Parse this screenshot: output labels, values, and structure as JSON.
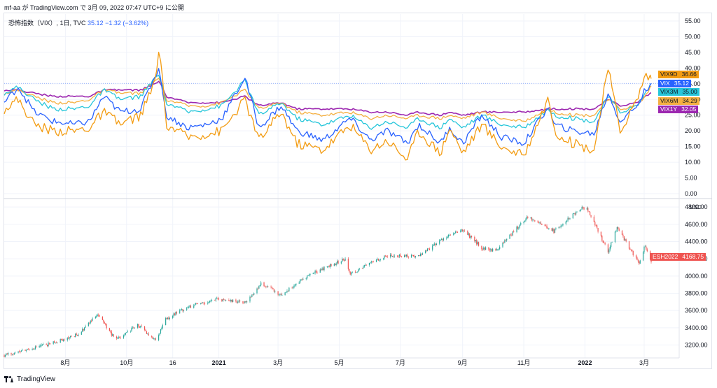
{
  "header": {
    "author": "mf-aa",
    "text": "mf-aa が TradingView.com で 3月 09, 2022 07:47 UTC+9 に公開"
  },
  "legend": {
    "symbol": "恐怖指数（VIX）, 1日, TVC",
    "value": "35.12",
    "change": "−1.32 (−3.62%)"
  },
  "footer": {
    "brand": "TradingView"
  },
  "colors": {
    "VIX9D": "#f39c12",
    "VIX": "#2962ff",
    "VIX3M": "#26c6da",
    "VIX6M": "#f5b041",
    "VIX1Y": "#9c27b0",
    "ESH2022": "#ef5350",
    "up": "#26a69a",
    "down": "#ef5350",
    "grid": "#f0f3fa"
  },
  "chart_data": [
    {
      "type": "line",
      "title": "恐怖指数（VIX）, 1日, TVC",
      "ylim": [
        0,
        55
      ],
      "y_ticks": [
        "55.00",
        "50.00",
        "45.00",
        "40.00",
        "35.00",
        "30.00",
        "25.00",
        "20.00",
        "15.00",
        "10.00",
        "5.00",
        "0.00"
      ],
      "x_ticks": [
        "8月",
        "10月",
        "16",
        "2021",
        "3月",
        "5月",
        "7月",
        "9月",
        "11月",
        "2022",
        "3月"
      ],
      "x_tick_dates": [
        "2020-08-01",
        "2020-10-01",
        "2020-11-16",
        "2021-01-01",
        "2021-03-01",
        "2021-05-01",
        "2021-07-01",
        "2021-09-01",
        "2021-11-01",
        "2022-01-01",
        "2022-03-01"
      ],
      "x_range": [
        "2020-06-01",
        "2022-03-08"
      ],
      "series": [
        {
          "name": "VIX9D",
          "last": "36.66",
          "anchors": [
            [
              "2020-06-01",
              27
            ],
            [
              "2020-06-15",
              30
            ],
            [
              "2020-07-01",
              22
            ],
            [
              "2020-07-20",
              20
            ],
            [
              "2020-08-10",
              20
            ],
            [
              "2020-08-25",
              21
            ],
            [
              "2020-09-08",
              26
            ],
            [
              "2020-09-25",
              22
            ],
            [
              "2020-10-15",
              25
            ],
            [
              "2020-10-30",
              36
            ],
            [
              "2020-11-03",
              48
            ],
            [
              "2020-11-09",
              22
            ],
            [
              "2020-12-01",
              18
            ],
            [
              "2020-12-20",
              19
            ],
            [
              "2021-01-04",
              20
            ],
            [
              "2021-01-27",
              30
            ],
            [
              "2021-02-10",
              17
            ],
            [
              "2021-03-04",
              26
            ],
            [
              "2021-03-20",
              16
            ],
            [
              "2021-04-15",
              14
            ],
            [
              "2021-05-12",
              22
            ],
            [
              "2021-06-01",
              14
            ],
            [
              "2021-06-18",
              17
            ],
            [
              "2021-07-08",
              11
            ],
            [
              "2021-07-19",
              20
            ],
            [
              "2021-08-10",
              13
            ],
            [
              "2021-08-19",
              21
            ],
            [
              "2021-09-01",
              13
            ],
            [
              "2021-09-20",
              22
            ],
            [
              "2021-10-10",
              15
            ],
            [
              "2021-11-01",
              12
            ],
            [
              "2021-11-26",
              31
            ],
            [
              "2021-12-01",
              20
            ],
            [
              "2021-12-20",
              16
            ],
            [
              "2022-01-10",
              14
            ],
            [
              "2022-01-24",
              40
            ],
            [
              "2022-02-05",
              20
            ],
            [
              "2022-02-22",
              30
            ],
            [
              "2022-03-02",
              38
            ],
            [
              "2022-03-08",
              36.66
            ]
          ]
        },
        {
          "name": "VIX",
          "last": "35.12",
          "anchors": [
            [
              "2020-06-01",
              29
            ],
            [
              "2020-06-15",
              34
            ],
            [
              "2020-07-01",
              26
            ],
            [
              "2020-07-20",
              23
            ],
            [
              "2020-08-10",
              22
            ],
            [
              "2020-08-25",
              23
            ],
            [
              "2020-09-08",
              31
            ],
            [
              "2020-09-25",
              26
            ],
            [
              "2020-10-15",
              27
            ],
            [
              "2020-10-30",
              38
            ],
            [
              "2020-11-03",
              40
            ],
            [
              "2020-11-09",
              25
            ],
            [
              "2020-12-01",
              21
            ],
            [
              "2020-12-20",
              22
            ],
            [
              "2021-01-04",
              24
            ],
            [
              "2021-01-27",
              37
            ],
            [
              "2021-02-10",
              21
            ],
            [
              "2021-03-04",
              28
            ],
            [
              "2021-03-20",
              20
            ],
            [
              "2021-04-15",
              17
            ],
            [
              "2021-05-12",
              24
            ],
            [
              "2021-06-01",
              17
            ],
            [
              "2021-06-18",
              20
            ],
            [
              "2021-07-08",
              16
            ],
            [
              "2021-07-19",
              22
            ],
            [
              "2021-08-10",
              16
            ],
            [
              "2021-08-19",
              21
            ],
            [
              "2021-09-01",
              16
            ],
            [
              "2021-09-20",
              25
            ],
            [
              "2021-10-10",
              18
            ],
            [
              "2021-11-01",
              16
            ],
            [
              "2021-11-26",
              28
            ],
            [
              "2021-12-01",
              22
            ],
            [
              "2021-12-20",
              20
            ],
            [
              "2022-01-10",
              19
            ],
            [
              "2022-01-24",
              32
            ],
            [
              "2022-02-05",
              23
            ],
            [
              "2022-02-22",
              28
            ],
            [
              "2022-03-02",
              33
            ],
            [
              "2022-03-08",
              35.12
            ]
          ]
        },
        {
          "name": "VIX3M",
          "last": "35.00",
          "anchors": [
            [
              "2020-06-01",
              32
            ],
            [
              "2020-06-15",
              34
            ],
            [
              "2020-07-01",
              30
            ],
            [
              "2020-07-20",
              27
            ],
            [
              "2020-08-10",
              27
            ],
            [
              "2020-08-25",
              28
            ],
            [
              "2020-09-08",
              33
            ],
            [
              "2020-09-25",
              30
            ],
            [
              "2020-10-15",
              31
            ],
            [
              "2020-10-30",
              37
            ],
            [
              "2020-11-03",
              38
            ],
            [
              "2020-11-09",
              29
            ],
            [
              "2020-12-01",
              26
            ],
            [
              "2020-12-20",
              27
            ],
            [
              "2021-01-04",
              28
            ],
            [
              "2021-01-27",
              36
            ],
            [
              "2021-02-10",
              25
            ],
            [
              "2021-03-04",
              29
            ],
            [
              "2021-03-20",
              24
            ],
            [
              "2021-04-15",
              22
            ],
            [
              "2021-05-12",
              25
            ],
            [
              "2021-06-01",
              21
            ],
            [
              "2021-06-18",
              23
            ],
            [
              "2021-07-08",
              21
            ],
            [
              "2021-07-19",
              24
            ],
            [
              "2021-08-10",
              21
            ],
            [
              "2021-08-19",
              24
            ],
            [
              "2021-09-01",
              21
            ],
            [
              "2021-09-20",
              25
            ],
            [
              "2021-10-10",
              22
            ],
            [
              "2021-11-01",
              21
            ],
            [
              "2021-11-26",
              27
            ],
            [
              "2021-12-01",
              25
            ],
            [
              "2021-12-20",
              24
            ],
            [
              "2022-01-10",
              23
            ],
            [
              "2022-01-24",
              31
            ],
            [
              "2022-02-05",
              26
            ],
            [
              "2022-02-22",
              28
            ],
            [
              "2022-03-02",
              32
            ],
            [
              "2022-03-08",
              35.0
            ]
          ]
        },
        {
          "name": "VIX6M",
          "last": "34.29",
          "anchors": [
            [
              "2020-06-01",
              32
            ],
            [
              "2020-06-15",
              33
            ],
            [
              "2020-07-01",
              31
            ],
            [
              "2020-07-20",
              29
            ],
            [
              "2020-08-10",
              29
            ],
            [
              "2020-08-25",
              30
            ],
            [
              "2020-09-08",
              33
            ],
            [
              "2020-09-25",
              32
            ],
            [
              "2020-10-15",
              32
            ],
            [
              "2020-10-30",
              36
            ],
            [
              "2020-11-03",
              37
            ],
            [
              "2020-11-09",
              30
            ],
            [
              "2020-12-01",
              28
            ],
            [
              "2020-12-20",
              28
            ],
            [
              "2021-01-04",
              29
            ],
            [
              "2021-01-27",
              33
            ],
            [
              "2021-02-10",
              27
            ],
            [
              "2021-03-04",
              29
            ],
            [
              "2021-03-20",
              26
            ],
            [
              "2021-04-15",
              25
            ],
            [
              "2021-05-12",
              26
            ],
            [
              "2021-06-01",
              24
            ],
            [
              "2021-06-18",
              25
            ],
            [
              "2021-07-08",
              24
            ],
            [
              "2021-07-19",
              25
            ],
            [
              "2021-08-10",
              24
            ],
            [
              "2021-08-19",
              25
            ],
            [
              "2021-09-01",
              24
            ],
            [
              "2021-09-20",
              26
            ],
            [
              "2021-10-10",
              24
            ],
            [
              "2021-11-01",
              23
            ],
            [
              "2021-11-26",
              27
            ],
            [
              "2021-12-01",
              26
            ],
            [
              "2021-12-20",
              25
            ],
            [
              "2022-01-10",
              25
            ],
            [
              "2022-01-24",
              30
            ],
            [
              "2022-02-05",
              27
            ],
            [
              "2022-02-22",
              28
            ],
            [
              "2022-03-02",
              31
            ],
            [
              "2022-03-08",
              34.29
            ]
          ]
        },
        {
          "name": "VIX1Y",
          "last": "32.05",
          "anchors": [
            [
              "2020-06-01",
              33
            ],
            [
              "2020-06-15",
              33
            ],
            [
              "2020-07-01",
              32
            ],
            [
              "2020-07-20",
              31
            ],
            [
              "2020-08-10",
              31
            ],
            [
              "2020-08-25",
              31
            ],
            [
              "2020-09-08",
              33
            ],
            [
              "2020-09-25",
              33
            ],
            [
              "2020-10-15",
              33
            ],
            [
              "2020-10-30",
              35
            ],
            [
              "2020-11-03",
              36
            ],
            [
              "2020-11-09",
              31
            ],
            [
              "2020-12-01",
              29
            ],
            [
              "2020-12-20",
              29
            ],
            [
              "2021-01-04",
              29
            ],
            [
              "2021-01-27",
              31
            ],
            [
              "2021-02-10",
              28
            ],
            [
              "2021-03-04",
              29
            ],
            [
              "2021-03-20",
              27
            ],
            [
              "2021-04-15",
              27
            ],
            [
              "2021-05-12",
              27
            ],
            [
              "2021-06-01",
              26
            ],
            [
              "2021-06-18",
              26
            ],
            [
              "2021-07-08",
              25
            ],
            [
              "2021-07-19",
              26
            ],
            [
              "2021-08-10",
              25
            ],
            [
              "2021-08-19",
              26
            ],
            [
              "2021-09-01",
              25
            ],
            [
              "2021-09-20",
              26
            ],
            [
              "2021-10-10",
              26
            ],
            [
              "2021-11-01",
              26
            ],
            [
              "2021-11-26",
              27
            ],
            [
              "2021-12-01",
              27
            ],
            [
              "2021-12-20",
              27
            ],
            [
              "2022-01-10",
              27
            ],
            [
              "2022-01-24",
              30
            ],
            [
              "2022-02-05",
              28
            ],
            [
              "2022-02-22",
              29
            ],
            [
              "2022-03-02",
              31
            ],
            [
              "2022-03-08",
              32.05
            ]
          ]
        }
      ]
    },
    {
      "type": "candlestick",
      "symbol": "ESH2022",
      "last": "4168.75",
      "unit": "USD",
      "ylim": [
        3050,
        4850
      ],
      "y_ticks": [
        "4800.00",
        "4600.00",
        "4400.00",
        "4200.00",
        "4000.00",
        "3800.00",
        "3600.00",
        "3400.00",
        "3200.00"
      ],
      "x_range": [
        "2020-06-01",
        "2022-03-08"
      ],
      "close_anchors": [
        [
          "2020-06-01",
          3080
        ],
        [
          "2020-06-20",
          3130
        ],
        [
          "2020-07-15",
          3210
        ],
        [
          "2020-08-15",
          3330
        ],
        [
          "2020-09-02",
          3560
        ],
        [
          "2020-09-20",
          3260
        ],
        [
          "2020-10-12",
          3440
        ],
        [
          "2020-10-30",
          3250
        ],
        [
          "2020-11-09",
          3500
        ],
        [
          "2020-12-01",
          3640
        ],
        [
          "2020-12-31",
          3730
        ],
        [
          "2021-01-29",
          3700
        ],
        [
          "2021-02-12",
          3920
        ],
        [
          "2021-03-04",
          3780
        ],
        [
          "2021-04-01",
          4010
        ],
        [
          "2021-05-07",
          4200
        ],
        [
          "2021-05-12",
          4030
        ],
        [
          "2021-06-15",
          4230
        ],
        [
          "2021-07-19",
          4230
        ],
        [
          "2021-08-15",
          4450
        ],
        [
          "2021-09-02",
          4530
        ],
        [
          "2021-09-20",
          4330
        ],
        [
          "2021-10-04",
          4290
        ],
        [
          "2021-11-05",
          4690
        ],
        [
          "2021-12-01",
          4520
        ],
        [
          "2021-12-27",
          4780
        ],
        [
          "2022-01-03",
          4790
        ],
        [
          "2022-01-24",
          4280
        ],
        [
          "2022-02-02",
          4560
        ],
        [
          "2022-02-24",
          4140
        ],
        [
          "2022-03-02",
          4360
        ],
        [
          "2022-03-08",
          4168.75
        ]
      ]
    }
  ]
}
